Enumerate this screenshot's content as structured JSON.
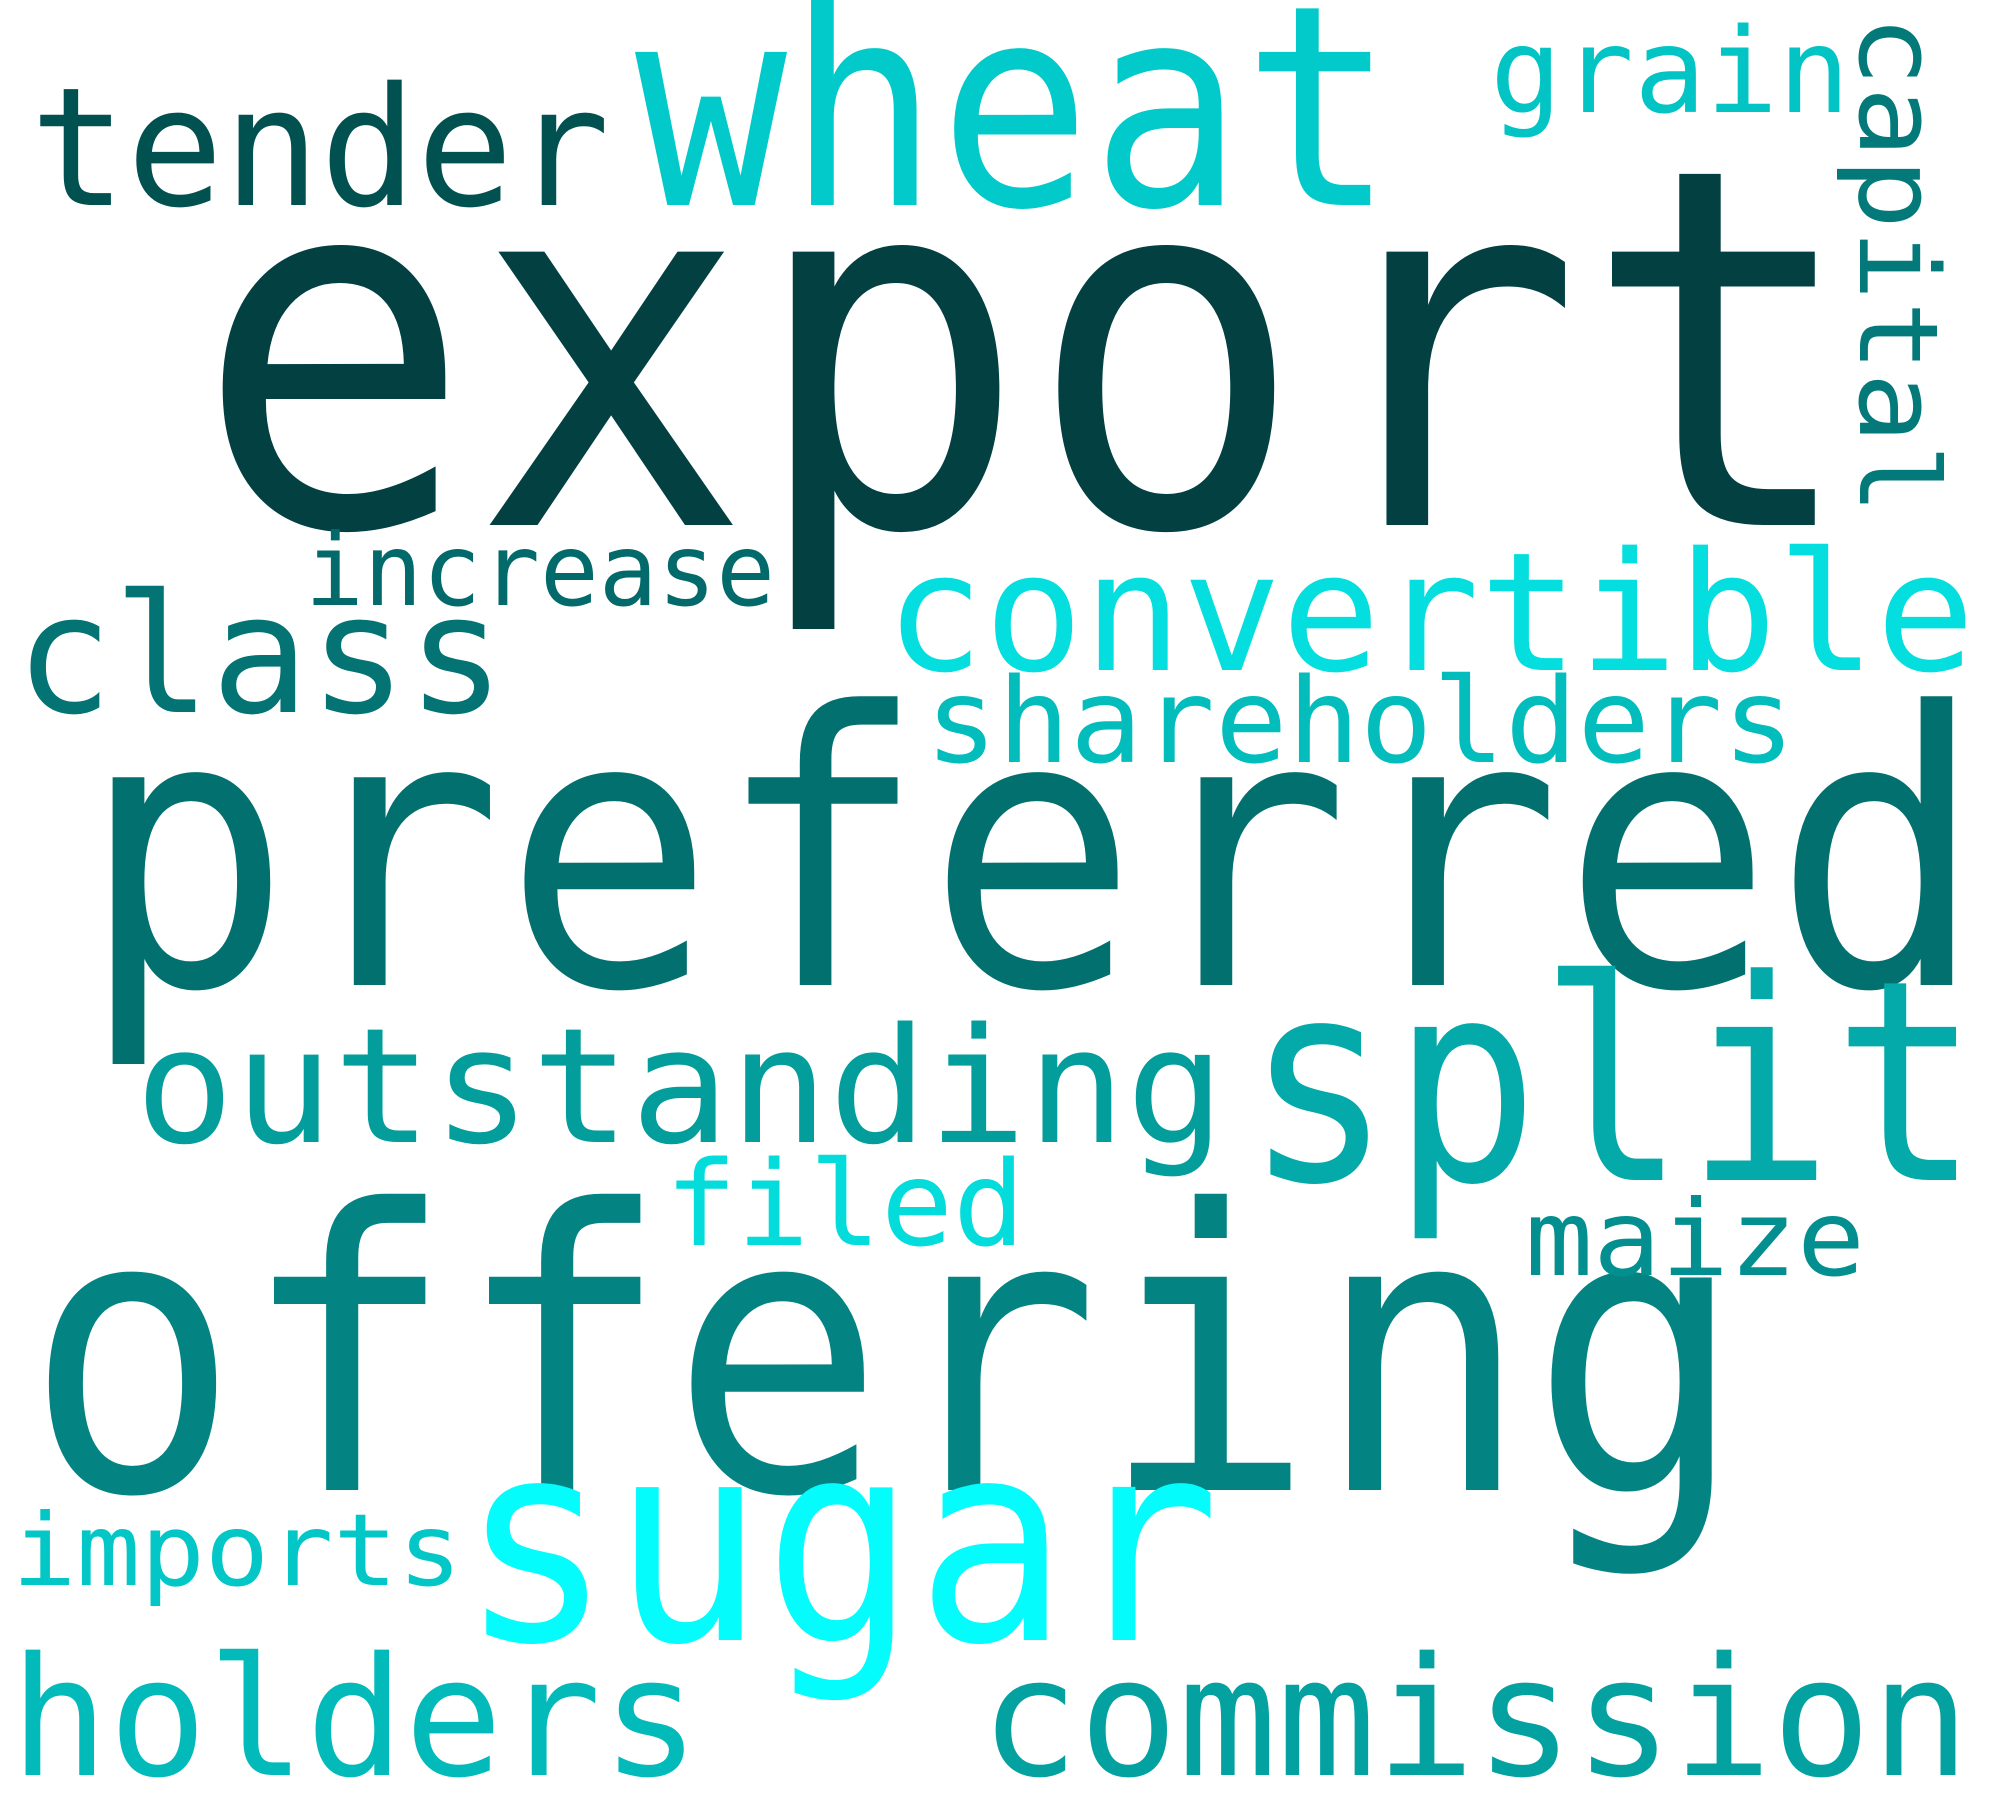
{
  "words": [
    {
      "name": "word-export",
      "text": "export",
      "color": "#024042"
    },
    {
      "name": "word-preferred",
      "text": "preferred",
      "color": "#037070"
    },
    {
      "name": "word-offering",
      "text": "offering",
      "color": "#038483"
    },
    {
      "name": "word-wheat",
      "text": "wheat",
      "color": "#02CACA"
    },
    {
      "name": "word-split",
      "text": "split",
      "color": "#04A9A9"
    },
    {
      "name": "word-sugar",
      "text": "sugar",
      "color": "#04FCFC"
    },
    {
      "name": "word-convertible",
      "text": "convertible",
      "color": "#04DEDE"
    },
    {
      "name": "word-tender",
      "text": "tender",
      "color": "#025151"
    },
    {
      "name": "word-outstanding",
      "text": "outstanding",
      "color": "#039D9C"
    },
    {
      "name": "word-commission",
      "text": "commission",
      "color": "#03A1A0"
    },
    {
      "name": "word-holders",
      "text": "holders",
      "color": "#03BABA"
    },
    {
      "name": "word-class",
      "text": "class",
      "color": "#037373"
    },
    {
      "name": "word-shareholders",
      "text": "shareholders",
      "color": "#03BDBD"
    },
    {
      "name": "word-grain",
      "text": "grain",
      "color": "#03C4C4"
    },
    {
      "name": "word-capital",
      "text": "capital",
      "color": "#037979"
    },
    {
      "name": "word-filed",
      "text": "filed",
      "color": "#04DCDC"
    },
    {
      "name": "word-maize",
      "text": "maize",
      "color": "#038F8F"
    },
    {
      "name": "word-increase",
      "text": "increase",
      "color": "#026A6A"
    },
    {
      "name": "word-imports",
      "text": "imports",
      "color": "#03C7C7"
    }
  ]
}
